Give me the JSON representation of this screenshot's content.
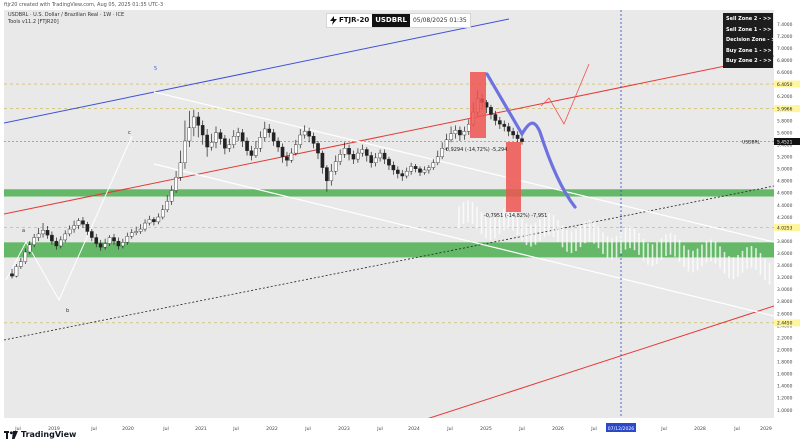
{
  "header": {
    "caption": "ftjr20 created with TradingView.com, Aug 05, 2025 01:35 UTC-3"
  },
  "legend": {
    "line1": "USDBRL · U.S. Dollar / Brazilian Real · 1W · ICE",
    "line2": "Tools v11.2 [FTJR20]"
  },
  "symbol_box": {
    "icon": "lightning-icon",
    "publisher": "FTJR-20",
    "ticker": "USDBRL",
    "datetime": "05/08/2025 01:35"
  },
  "zones": [
    "Sell Zone 2 - >>",
    "Sell Zone 1 - >>",
    "Decision Zone - >>",
    "Buy Zone 1 - >>",
    "Buy Zone 2 - >>"
  ],
  "footer": {
    "logo_icon": "tradingview-logo-icon",
    "brand": "TradingView"
  },
  "colors": {
    "green_zone": "#4caf50",
    "red_box": "#ef5350",
    "blue_path": "#6e72e0",
    "up_channel": "#e53935",
    "top_line": "#3f51d8",
    "price_badge": "#111111",
    "level_badge": "#fff59d",
    "date_badge": "#2a48c7"
  },
  "chart_data": {
    "type": "candlestick",
    "symbol": "USDBRL",
    "interval": "1W",
    "ylim": [
      1.0,
      7.5
    ],
    "y_ticks": [
      "7.4000",
      "7.2000",
      "7.0000",
      "6.8000",
      "6.6000",
      "6.4000",
      "6.2000",
      "6.0000",
      "5.8000",
      "5.6000",
      "5.4000",
      "5.2000",
      "5.0000",
      "4.8000",
      "4.6000",
      "4.4000",
      "4.2000",
      "4.0000",
      "3.8000",
      "3.6000",
      "3.4000",
      "3.2000",
      "3.0000",
      "2.8000",
      "2.6000",
      "2.4000",
      "2.2000",
      "2.0000",
      "1.8000",
      "1.6000",
      "1.4000",
      "1.2000",
      "1.0000"
    ],
    "x_ticks": [
      "Jul",
      "2019",
      "Jul",
      "2020",
      "Jul",
      "2021",
      "Jul",
      "2022",
      "Jul",
      "2023",
      "Jul",
      "2024",
      "Jul",
      "2025",
      "Jul",
      "2026",
      "Jul",
      "07/12/2026",
      "Jul",
      "2028",
      "Jul",
      "2029"
    ],
    "last_price": {
      "ticker": "USDBRL",
      "value": "5.4521"
    },
    "level_labels": [
      {
        "value": 6.405,
        "label": "6.4050"
      },
      {
        "value": 5.9966,
        "label": "5.9966"
      },
      {
        "value": 4.0253,
        "label": "4.0253"
      },
      {
        "value": 2.445,
        "label": "2.4450"
      }
    ],
    "measures": [
      {
        "text": "-0,9294 (-14,72%) -5,294"
      },
      {
        "text": "-0,7951 (-14,82%) -7,951"
      }
    ],
    "wave_labels": [
      "a",
      "b",
      "c",
      "5"
    ],
    "zones": [
      {
        "name": "upper-green-zone",
        "low": 4.54,
        "high": 4.66
      },
      {
        "name": "lower-green-zone",
        "low": 3.53,
        "high": 3.78
      }
    ],
    "candles_2018_2025": [
      [
        3.26,
        3.22,
        3.34,
        3.18
      ],
      [
        3.22,
        3.38,
        3.42,
        3.2
      ],
      [
        3.38,
        3.46,
        3.52,
        3.34
      ],
      [
        3.46,
        3.62,
        3.68,
        3.42
      ],
      [
        3.62,
        3.74,
        3.8,
        3.58
      ],
      [
        3.74,
        3.86,
        3.92,
        3.7
      ],
      [
        3.86,
        3.92,
        4.02,
        3.8
      ],
      [
        3.92,
        3.98,
        4.1,
        3.86
      ],
      [
        3.98,
        3.9,
        4.05,
        3.84
      ],
      [
        3.9,
        3.8,
        3.96,
        3.74
      ],
      [
        3.8,
        3.72,
        3.86,
        3.66
      ],
      [
        3.72,
        3.82,
        3.88,
        3.68
      ],
      [
        3.82,
        3.92,
        3.98,
        3.78
      ],
      [
        3.92,
        4.0,
        4.06,
        3.88
      ],
      [
        4.0,
        4.06,
        4.14,
        3.94
      ],
      [
        4.06,
        4.14,
        4.18,
        4.0
      ],
      [
        4.14,
        4.08,
        4.2,
        4.02
      ],
      [
        4.08,
        3.96,
        4.12,
        3.9
      ],
      [
        3.96,
        3.86,
        4.0,
        3.8
      ],
      [
        3.86,
        3.76,
        3.92,
        3.7
      ],
      [
        3.76,
        3.7,
        3.82,
        3.64
      ],
      [
        3.7,
        3.76,
        3.84,
        3.66
      ],
      [
        3.76,
        3.86,
        3.9,
        3.72
      ],
      [
        3.86,
        3.8,
        3.92,
        3.74
      ],
      [
        3.8,
        3.72,
        3.86,
        3.66
      ],
      [
        3.72,
        3.78,
        3.84,
        3.68
      ],
      [
        3.78,
        3.88,
        3.94,
        3.74
      ],
      [
        3.88,
        3.94,
        4.0,
        3.84
      ],
      [
        3.94,
        3.96,
        4.04,
        3.9
      ],
      [
        3.96,
        4.0,
        4.08,
        3.92
      ],
      [
        4.0,
        4.1,
        4.16,
        3.96
      ],
      [
        4.1,
        4.16,
        4.22,
        4.06
      ],
      [
        4.16,
        4.12,
        4.2,
        4.06
      ],
      [
        4.12,
        4.2,
        4.26,
        4.08
      ],
      [
        4.2,
        4.32,
        4.4,
        4.16
      ],
      [
        4.32,
        4.46,
        4.56,
        4.28
      ],
      [
        4.46,
        4.64,
        4.72,
        4.4
      ],
      [
        4.64,
        4.86,
        4.96,
        4.6
      ],
      [
        4.86,
        5.1,
        5.3,
        4.8
      ],
      [
        5.1,
        5.46,
        5.8,
        5.0
      ],
      [
        5.46,
        5.68,
        5.96,
        5.36
      ],
      [
        5.68,
        5.86,
        5.98,
        5.54
      ],
      [
        5.86,
        5.72,
        5.94,
        5.52
      ],
      [
        5.72,
        5.56,
        5.8,
        5.4
      ],
      [
        5.56,
        5.36,
        5.66,
        5.2
      ],
      [
        5.36,
        5.44,
        5.58,
        5.3
      ],
      [
        5.44,
        5.6,
        5.7,
        5.34
      ],
      [
        5.6,
        5.5,
        5.66,
        5.4
      ],
      [
        5.5,
        5.34,
        5.56,
        5.24
      ],
      [
        5.34,
        5.4,
        5.5,
        5.28
      ],
      [
        5.4,
        5.54,
        5.64,
        5.34
      ],
      [
        5.54,
        5.6,
        5.68,
        5.46
      ],
      [
        5.6,
        5.46,
        5.66,
        5.36
      ],
      [
        5.46,
        5.3,
        5.52,
        5.22
      ],
      [
        5.3,
        5.22,
        5.38,
        5.14
      ],
      [
        5.22,
        5.34,
        5.46,
        5.18
      ],
      [
        5.34,
        5.52,
        5.62,
        5.28
      ],
      [
        5.52,
        5.66,
        5.78,
        5.46
      ],
      [
        5.66,
        5.6,
        5.74,
        5.52
      ],
      [
        5.6,
        5.46,
        5.66,
        5.38
      ],
      [
        5.46,
        5.36,
        5.52,
        5.28
      ],
      [
        5.36,
        5.2,
        5.42,
        5.1
      ],
      [
        5.2,
        5.14,
        5.28,
        5.04
      ],
      [
        5.14,
        5.26,
        5.34,
        5.1
      ],
      [
        5.26,
        5.4,
        5.48,
        5.22
      ],
      [
        5.4,
        5.56,
        5.66,
        5.34
      ],
      [
        5.56,
        5.62,
        5.72,
        5.5
      ],
      [
        5.62,
        5.54,
        5.68,
        5.44
      ],
      [
        5.54,
        5.42,
        5.6,
        5.34
      ],
      [
        5.42,
        5.26,
        5.46,
        5.16
      ],
      [
        5.26,
        5.02,
        5.3,
        4.92
      ],
      [
        5.02,
        4.8,
        5.06,
        4.62
      ],
      [
        4.8,
        4.96,
        5.08,
        4.72
      ],
      [
        4.96,
        5.12,
        5.22,
        4.9
      ],
      [
        5.12,
        5.24,
        5.32,
        5.06
      ],
      [
        5.24,
        5.34,
        5.44,
        5.18
      ],
      [
        5.34,
        5.24,
        5.4,
        5.14
      ],
      [
        5.24,
        5.16,
        5.3,
        5.08
      ],
      [
        5.16,
        5.26,
        5.34,
        5.1
      ],
      [
        5.26,
        5.32,
        5.4,
        5.2
      ],
      [
        5.32,
        5.22,
        5.36,
        5.12
      ],
      [
        5.22,
        5.1,
        5.28,
        5.02
      ],
      [
        5.1,
        5.18,
        5.26,
        5.04
      ],
      [
        5.18,
        5.26,
        5.32,
        5.12
      ],
      [
        5.26,
        5.16,
        5.32,
        5.08
      ],
      [
        5.16,
        5.06,
        5.2,
        4.98
      ],
      [
        5.06,
        4.98,
        5.12,
        4.9
      ],
      [
        4.98,
        4.92,
        5.04,
        4.84
      ],
      [
        4.92,
        4.88,
        4.98,
        4.8
      ],
      [
        4.88,
        4.96,
        5.02,
        4.84
      ],
      [
        4.96,
        5.04,
        5.1,
        4.9
      ],
      [
        5.04,
        5.0,
        5.08,
        4.94
      ],
      [
        5.0,
        4.94,
        5.04,
        4.88
      ],
      [
        4.94,
        4.98,
        5.04,
        4.9
      ],
      [
        4.98,
        5.02,
        5.06,
        4.92
      ],
      [
        5.02,
        5.1,
        5.16,
        4.98
      ],
      [
        5.1,
        5.2,
        5.3,
        5.06
      ],
      [
        5.2,
        5.34,
        5.44,
        5.16
      ],
      [
        5.34,
        5.48,
        5.58,
        5.3
      ],
      [
        5.48,
        5.58,
        5.7,
        5.44
      ],
      [
        5.58,
        5.64,
        5.72,
        5.5
      ],
      [
        5.64,
        5.56,
        5.7,
        5.46
      ],
      [
        5.56,
        5.62,
        5.7,
        5.48
      ],
      [
        5.62,
        5.74,
        5.82,
        5.56
      ],
      [
        5.74,
        5.94,
        6.1,
        5.7
      ],
      [
        5.94,
        6.16,
        6.3,
        5.88
      ],
      [
        6.16,
        6.1,
        6.24,
        5.98
      ],
      [
        6.1,
        6.02,
        6.14,
        5.92
      ],
      [
        6.02,
        5.9,
        6.06,
        5.82
      ],
      [
        5.9,
        5.8,
        5.96,
        5.72
      ],
      [
        5.8,
        5.74,
        5.86,
        5.66
      ],
      [
        5.74,
        5.7,
        5.8,
        5.62
      ],
      [
        5.7,
        5.62,
        5.76,
        5.54
      ],
      [
        5.62,
        5.56,
        5.68,
        5.5
      ],
      [
        5.56,
        5.5,
        5.62,
        5.44
      ],
      [
        5.5,
        5.45,
        5.58,
        5.4
      ]
    ],
    "projection": {
      "color": "blue",
      "points": [
        [
          5.45,
          0
        ],
        [
          5.6,
          1
        ],
        [
          5.35,
          2
        ],
        [
          5.0,
          3
        ],
        [
          4.6,
          4
        ]
      ]
    }
  }
}
